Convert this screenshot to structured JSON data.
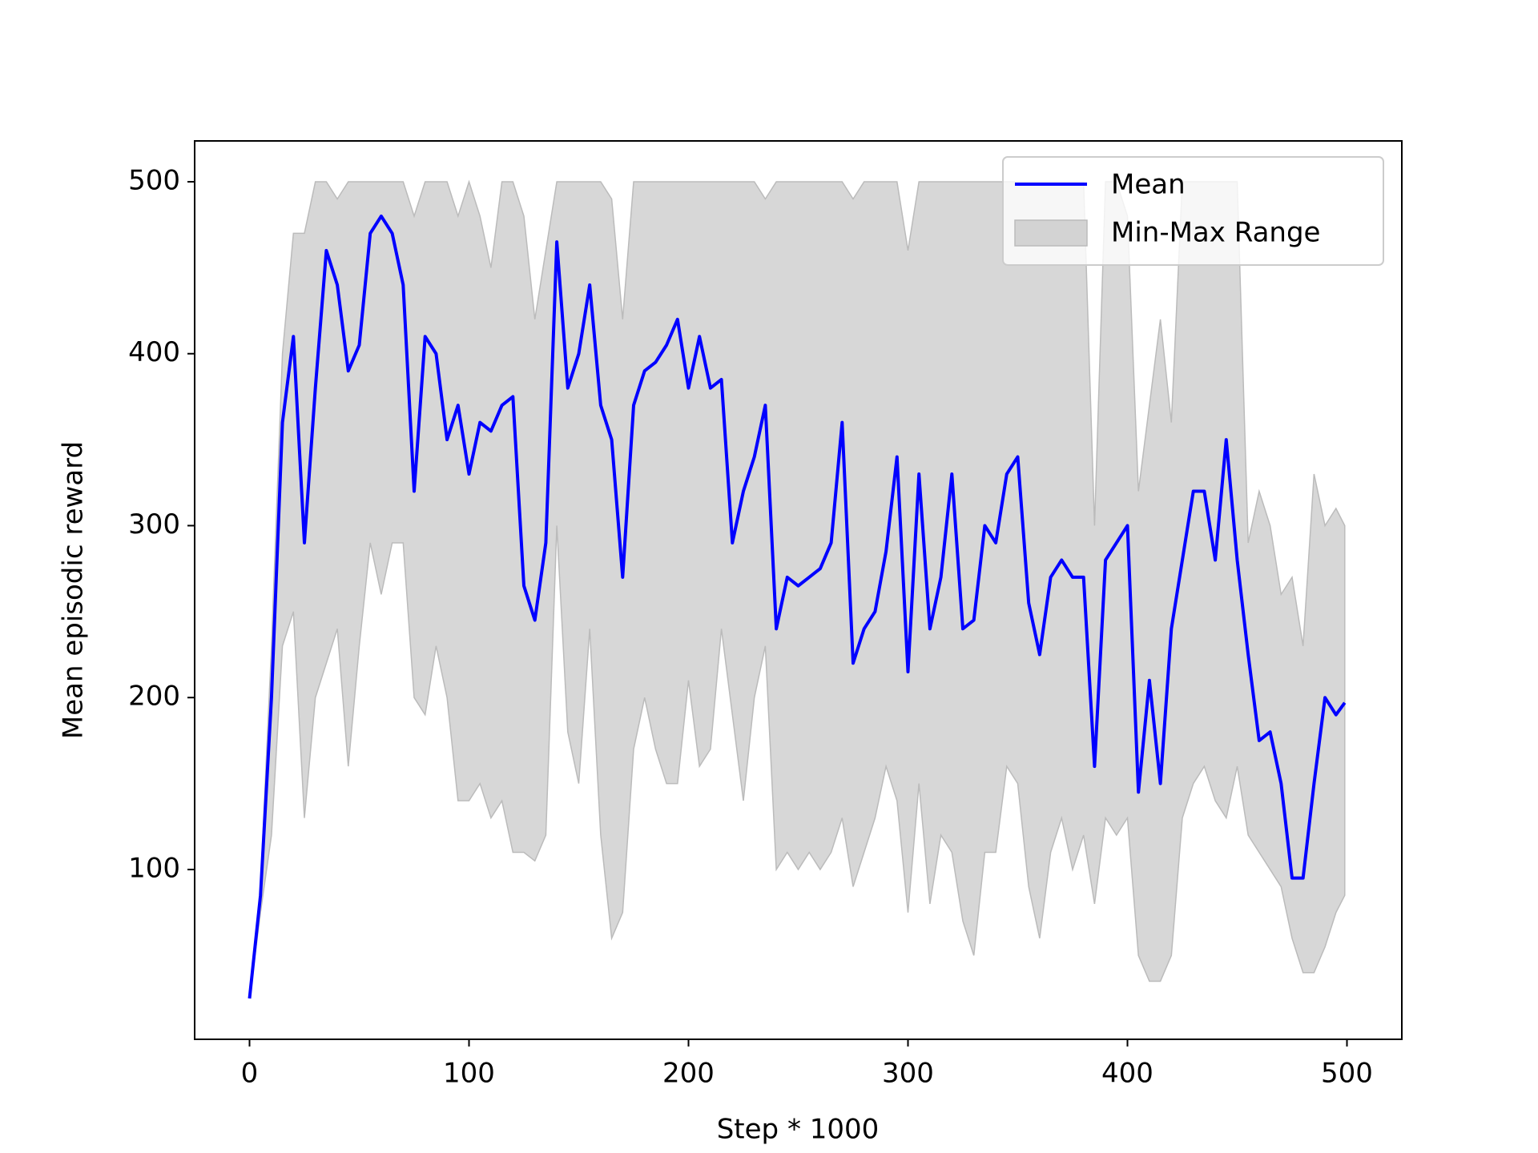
{
  "chart_data": {
    "type": "line",
    "xlabel": "Step * 1000",
    "ylabel": "Mean episodic reward",
    "x": [
      0,
      5,
      10,
      15,
      20,
      25,
      30,
      35,
      40,
      45,
      50,
      55,
      60,
      65,
      70,
      75,
      80,
      85,
      90,
      95,
      100,
      105,
      110,
      115,
      120,
      125,
      130,
      135,
      140,
      145,
      150,
      155,
      160,
      165,
      170,
      175,
      180,
      185,
      190,
      195,
      200,
      205,
      210,
      215,
      220,
      225,
      230,
      235,
      240,
      245,
      250,
      255,
      260,
      265,
      270,
      275,
      280,
      285,
      290,
      295,
      300,
      305,
      310,
      315,
      320,
      325,
      330,
      335,
      340,
      345,
      350,
      355,
      360,
      365,
      370,
      375,
      380,
      385,
      390,
      395,
      400,
      405,
      410,
      415,
      420,
      425,
      430,
      435,
      440,
      445,
      450,
      455,
      460,
      465,
      470,
      475,
      480,
      485,
      490,
      495,
      499
    ],
    "series": [
      {
        "name": "Mean",
        "color": "#0000ff",
        "values": [
          25,
          85,
          200,
          360,
          410,
          290,
          380,
          460,
          440,
          390,
          405,
          470,
          480,
          470,
          440,
          320,
          410,
          400,
          350,
          370,
          330,
          360,
          355,
          370,
          375,
          265,
          245,
          290,
          465,
          380,
          400,
          440,
          370,
          350,
          270,
          370,
          390,
          395,
          405,
          420,
          380,
          410,
          380,
          385,
          290,
          320,
          340,
          370,
          240,
          270,
          265,
          270,
          275,
          290,
          360,
          220,
          240,
          250,
          285,
          340,
          215,
          330,
          240,
          270,
          330,
          240,
          245,
          300,
          290,
          330,
          340,
          255,
          225,
          270,
          280,
          270,
          270,
          160,
          280,
          290,
          300,
          145,
          210,
          150,
          240,
          280,
          320,
          320,
          280,
          350,
          280,
          225,
          175,
          180,
          150,
          95,
          95,
          150,
          200,
          190,
          197
        ]
      }
    ],
    "band": {
      "name": "Min-Max Range",
      "color": "#d3d3d3",
      "upper": [
        25,
        90,
        230,
        400,
        470,
        470,
        500,
        500,
        490,
        500,
        500,
        500,
        500,
        500,
        500,
        480,
        500,
        500,
        500,
        480,
        500,
        480,
        450,
        500,
        500,
        480,
        420,
        460,
        500,
        500,
        500,
        500,
        500,
        490,
        420,
        500,
        500,
        500,
        500,
        500,
        500,
        500,
        500,
        500,
        500,
        500,
        500,
        490,
        500,
        500,
        500,
        500,
        500,
        500,
        500,
        490,
        500,
        500,
        500,
        500,
        460,
        500,
        500,
        500,
        500,
        500,
        500,
        500,
        500,
        500,
        500,
        500,
        500,
        500,
        500,
        500,
        500,
        300,
        500,
        500,
        480,
        320,
        370,
        420,
        360,
        500,
        500,
        500,
        500,
        500,
        500,
        290,
        320,
        300,
        260,
        270,
        230,
        330,
        300,
        310,
        300
      ],
      "lower": [
        25,
        75,
        120,
        230,
        250,
        130,
        200,
        220,
        240,
        160,
        230,
        290,
        260,
        290,
        290,
        200,
        190,
        230,
        200,
        140,
        140,
        150,
        130,
        140,
        110,
        110,
        105,
        120,
        300,
        180,
        150,
        240,
        120,
        60,
        75,
        170,
        200,
        170,
        150,
        150,
        210,
        160,
        170,
        240,
        190,
        140,
        200,
        230,
        100,
        110,
        100,
        110,
        100,
        110,
        130,
        90,
        110,
        130,
        160,
        140,
        75,
        150,
        80,
        120,
        110,
        70,
        50,
        110,
        110,
        160,
        150,
        90,
        60,
        110,
        130,
        100,
        120,
        80,
        130,
        120,
        130,
        50,
        35,
        35,
        50,
        130,
        150,
        160,
        140,
        130,
        160,
        120,
        110,
        100,
        90,
        60,
        40,
        40,
        55,
        75,
        85
      ]
    },
    "xlim": [
      -25,
      525
    ],
    "ylim": [
      1.25,
      523.75
    ],
    "xticks": [
      0,
      100,
      200,
      300,
      400,
      500
    ],
    "yticks": [
      100,
      200,
      300,
      400,
      500
    ],
    "grid": false,
    "legend": "upper right"
  }
}
